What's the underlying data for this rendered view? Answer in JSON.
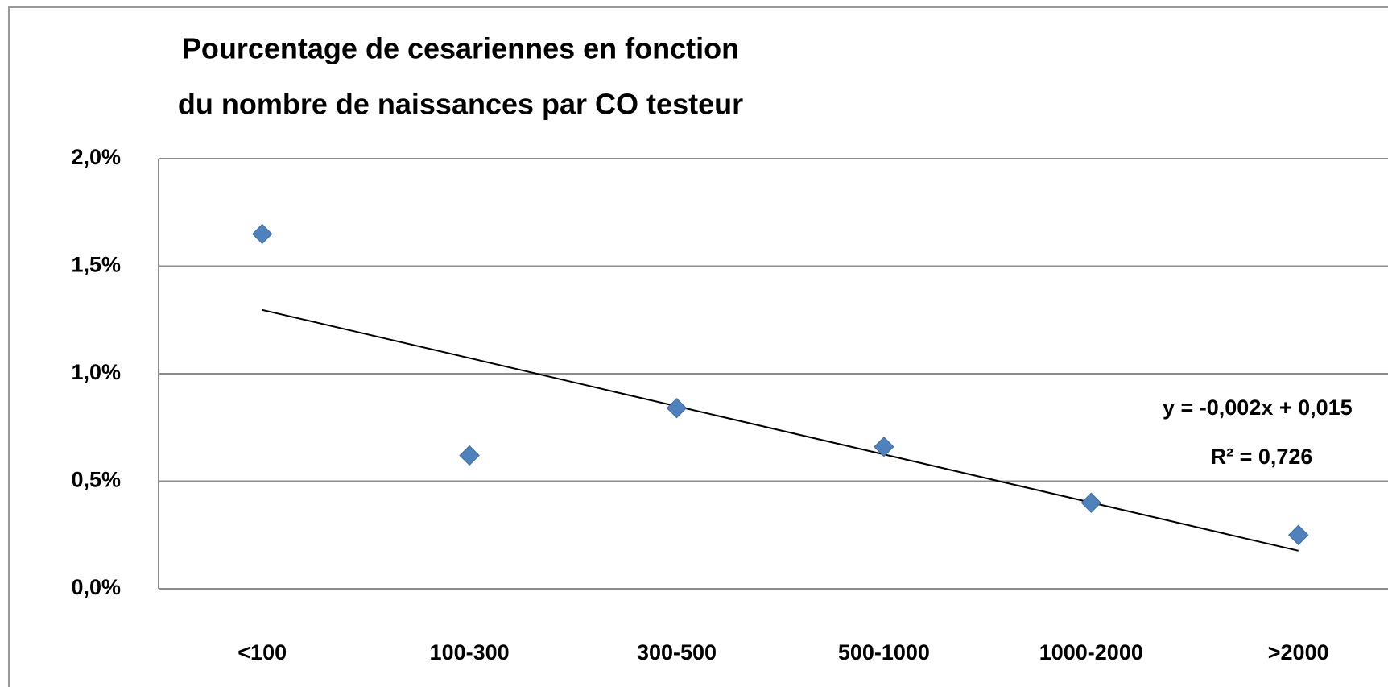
{
  "chart_data": {
    "type": "scatter",
    "title": [
      "Pourcentage de cesariennes en fonction",
      "du nombre de naissances par CO testeur"
    ],
    "categories": [
      "<100",
      "100-300",
      "300-500",
      "500-1000",
      "1000-2000",
      ">2000"
    ],
    "series": [
      {
        "color": "#4f81bd",
        "values": [
          1.65,
          0.62,
          0.84,
          0.66,
          0.4,
          0.25
        ]
      }
    ],
    "ylim": [
      0,
      2
    ],
    "yticks": [
      {
        "value": 0,
        "label": "0,0%"
      },
      {
        "value": 0.5,
        "label": "0,5%"
      },
      {
        "value": 1,
        "label": "1,0%"
      },
      {
        "value": 1.5,
        "label": "1,5%"
      },
      {
        "value": 2,
        "label": "2,0%"
      }
    ],
    "grid": true,
    "trendline": true,
    "annotations": [
      "y = -0,002x + 0,015",
      "R² = 0,726"
    ]
  }
}
